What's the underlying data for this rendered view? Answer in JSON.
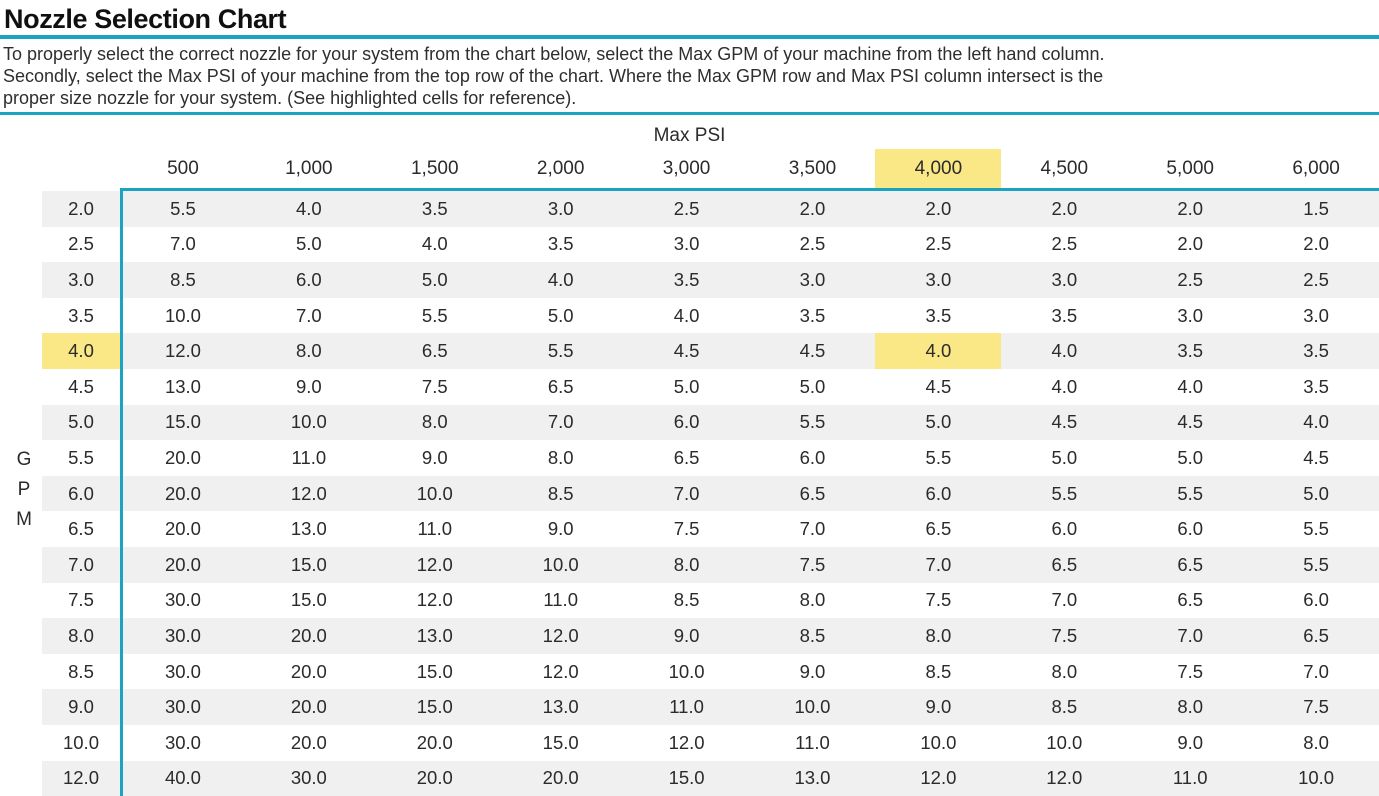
{
  "page": {
    "title": "Nozzle Selection Chart",
    "description_lines": [
      "To properly select the correct nozzle for your system from the chart below, select the Max GPM of your machine from the left hand column.",
      "Secondly, select the Max PSI of your machine from the top row of the chart. Where the Max GPM row and Max PSI column intersect is the",
      "proper size nozzle for your system. (See highlighted cells for reference)."
    ]
  },
  "colors": {
    "accent_teal": "#1aa3c2",
    "highlight_yellow": "#f9e885",
    "row_stripe_gray": "#f0f0f0",
    "text": "#2b2b2b"
  },
  "chart_data": {
    "type": "table",
    "title": "Nozzle Selection Chart",
    "col_axis_label": "Max PSI",
    "row_axis_label": "GPM",
    "columns": [
      "500",
      "1,000",
      "1,500",
      "2,000",
      "3,000",
      "3,500",
      "4,000",
      "4,500",
      "5,000",
      "6,000"
    ],
    "highlight": {
      "column": "4,000",
      "row_gpm": "4.0",
      "intersect_value": "4.0"
    },
    "rows": [
      {
        "gpm": "2.0",
        "values": [
          "5.5",
          "4.0",
          "3.5",
          "3.0",
          "2.5",
          "2.0",
          "2.0",
          "2.0",
          "2.0",
          "1.5"
        ]
      },
      {
        "gpm": "2.5",
        "values": [
          "7.0",
          "5.0",
          "4.0",
          "3.5",
          "3.0",
          "2.5",
          "2.5",
          "2.5",
          "2.0",
          "2.0"
        ]
      },
      {
        "gpm": "3.0",
        "values": [
          "8.5",
          "6.0",
          "5.0",
          "4.0",
          "3.5",
          "3.0",
          "3.0",
          "3.0",
          "2.5",
          "2.5"
        ]
      },
      {
        "gpm": "3.5",
        "values": [
          "10.0",
          "7.0",
          "5.5",
          "5.0",
          "4.0",
          "3.5",
          "3.5",
          "3.5",
          "3.0",
          "3.0"
        ]
      },
      {
        "gpm": "4.0",
        "values": [
          "12.0",
          "8.0",
          "6.5",
          "5.5",
          "4.5",
          "4.5",
          "4.0",
          "4.0",
          "3.5",
          "3.5"
        ]
      },
      {
        "gpm": "4.5",
        "values": [
          "13.0",
          "9.0",
          "7.5",
          "6.5",
          "5.0",
          "5.0",
          "4.5",
          "4.0",
          "4.0",
          "3.5"
        ]
      },
      {
        "gpm": "5.0",
        "values": [
          "15.0",
          "10.0",
          "8.0",
          "7.0",
          "6.0",
          "5.5",
          "5.0",
          "4.5",
          "4.5",
          "4.0"
        ]
      },
      {
        "gpm": "5.5",
        "values": [
          "20.0",
          "11.0",
          "9.0",
          "8.0",
          "6.5",
          "6.0",
          "5.5",
          "5.0",
          "5.0",
          "4.5"
        ]
      },
      {
        "gpm": "6.0",
        "values": [
          "20.0",
          "12.0",
          "10.0",
          "8.5",
          "7.0",
          "6.5",
          "6.0",
          "5.5",
          "5.5",
          "5.0"
        ]
      },
      {
        "gpm": "6.5",
        "values": [
          "20.0",
          "13.0",
          "11.0",
          "9.0",
          "7.5",
          "7.0",
          "6.5",
          "6.0",
          "6.0",
          "5.5"
        ]
      },
      {
        "gpm": "7.0",
        "values": [
          "20.0",
          "15.0",
          "12.0",
          "10.0",
          "8.0",
          "7.5",
          "7.0",
          "6.5",
          "6.5",
          "5.5"
        ]
      },
      {
        "gpm": "7.5",
        "values": [
          "30.0",
          "15.0",
          "12.0",
          "11.0",
          "8.5",
          "8.0",
          "7.5",
          "7.0",
          "6.5",
          "6.0"
        ]
      },
      {
        "gpm": "8.0",
        "values": [
          "30.0",
          "20.0",
          "13.0",
          "12.0",
          "9.0",
          "8.5",
          "8.0",
          "7.5",
          "7.0",
          "6.5"
        ]
      },
      {
        "gpm": "8.5",
        "values": [
          "30.0",
          "20.0",
          "15.0",
          "12.0",
          "10.0",
          "9.0",
          "8.5",
          "8.0",
          "7.5",
          "7.0"
        ]
      },
      {
        "gpm": "9.0",
        "values": [
          "30.0",
          "20.0",
          "15.0",
          "13.0",
          "11.0",
          "10.0",
          "9.0",
          "8.5",
          "8.0",
          "7.5"
        ]
      },
      {
        "gpm": "10.0",
        "values": [
          "30.0",
          "20.0",
          "20.0",
          "15.0",
          "12.0",
          "11.0",
          "10.0",
          "10.0",
          "9.0",
          "8.0"
        ]
      },
      {
        "gpm": "12.0",
        "values": [
          "40.0",
          "30.0",
          "20.0",
          "20.0",
          "15.0",
          "13.0",
          "12.0",
          "12.0",
          "11.0",
          "10.0"
        ]
      }
    ]
  }
}
